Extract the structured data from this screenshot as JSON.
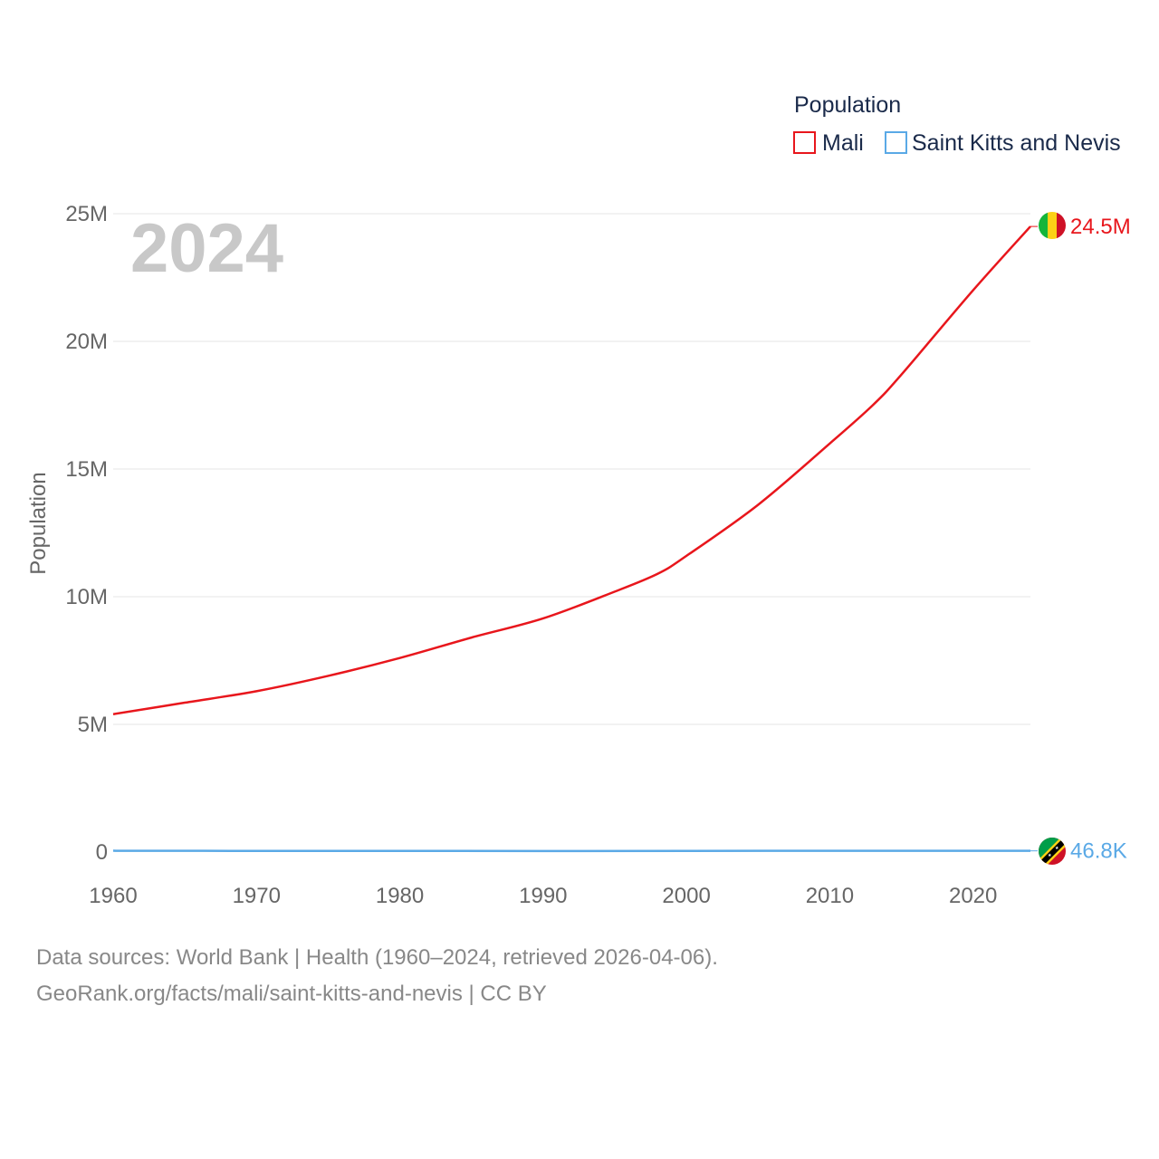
{
  "chart_data": {
    "type": "line",
    "title": "",
    "current_year": "2024",
    "xlabel": "",
    "ylabel": "Population",
    "xlim": [
      1960,
      2024
    ],
    "ylim": [
      0,
      25000000
    ],
    "x_ticks": [
      1960,
      1970,
      1980,
      1990,
      2000,
      2010,
      2020
    ],
    "x_tick_labels": [
      "1960",
      "1970",
      "1980",
      "1990",
      "2000",
      "2010",
      "2020"
    ],
    "y_ticks": [
      0,
      5000000,
      10000000,
      15000000,
      20000000,
      25000000
    ],
    "y_tick_labels": [
      "0",
      "5M",
      "10M",
      "15M",
      "20M",
      "25M"
    ],
    "grid": true,
    "legend": {
      "title": "Population",
      "position": "top-right"
    },
    "series": [
      {
        "name": "Mali",
        "color": "#e8161c",
        "end_label": "24.5M",
        "x": [
          1960,
          1965,
          1970,
          1975,
          1980,
          1985,
          1990,
          1995,
          1998,
          2000,
          2005,
          2010,
          2013,
          2015,
          2020,
          2024
        ],
        "values": [
          5400000,
          5850000,
          6300000,
          6900000,
          7600000,
          8400000,
          9150000,
          10200000,
          10900000,
          11600000,
          13600000,
          16000000,
          17500000,
          18700000,
          22000000,
          24500000
        ]
      },
      {
        "name": "Saint Kitts and Nevis",
        "color": "#5aa9e6",
        "end_label": "46.8K",
        "x": [
          1960,
          1970,
          1980,
          1990,
          2000,
          2010,
          2020,
          2024
        ],
        "values": [
          51000,
          45000,
          43000,
          41000,
          45500,
          48000,
          47500,
          46800
        ]
      }
    ]
  },
  "footer": {
    "line1": "Data sources: World Bank | Health (1960–2024, retrieved 2026-04-06).",
    "line2": "GeoRank.org/facts/mali/saint-kitts-and-nevis | CC BY"
  }
}
